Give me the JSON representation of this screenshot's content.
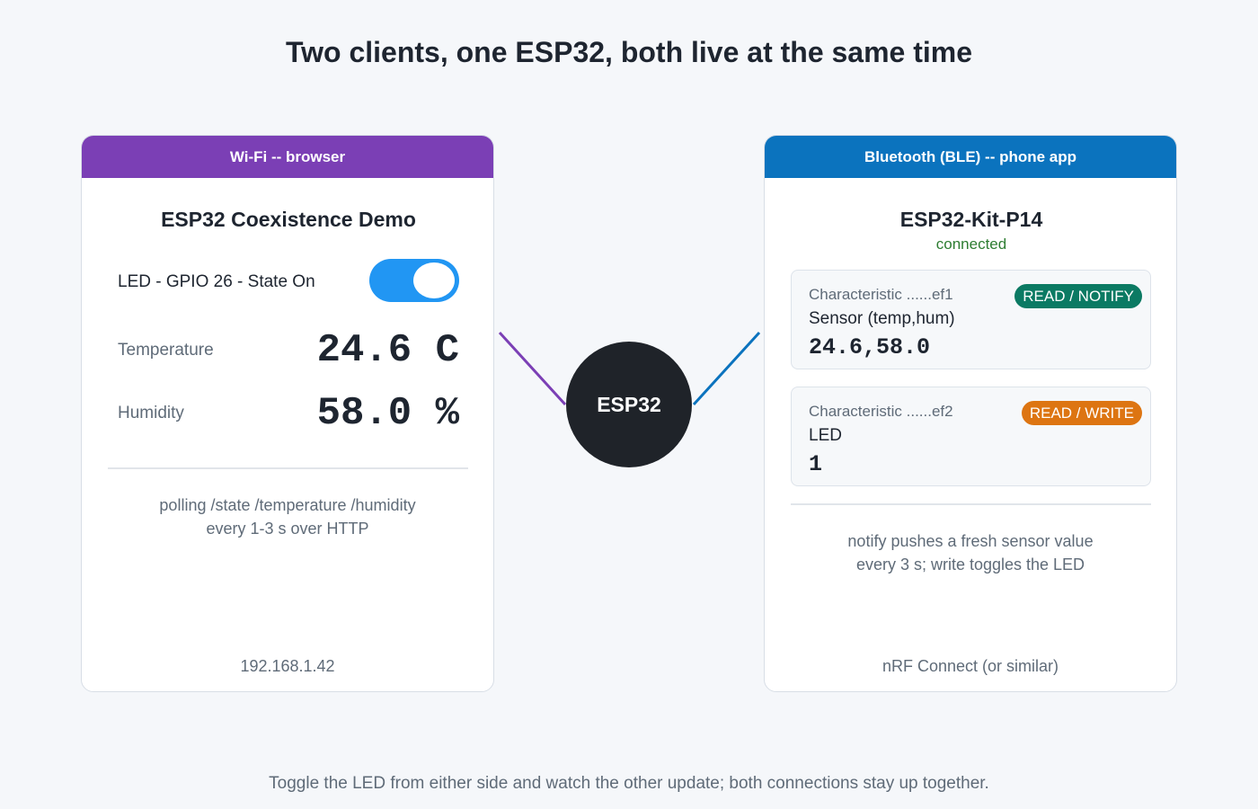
{
  "title": "Two clients, one ESP32, both live at the same time",
  "wifi_panel": {
    "header": "Wi-Fi -- browser",
    "page_title": "ESP32 Coexistence Demo",
    "led_label": "LED - GPIO 26 - State On",
    "led_on": true,
    "temperature_label": "Temperature",
    "temperature_value": "24.6 C",
    "humidity_label": "Humidity",
    "humidity_value": "58.0 %",
    "note_line1": "polling /state /temperature /humidity",
    "note_line2": "every 1-3 s over HTTP",
    "footer": "192.168.1.42"
  },
  "ble_panel": {
    "header": "Bluetooth (BLE) -- phone app",
    "device_name": "ESP32-Kit-P14",
    "status": "connected",
    "characteristics": [
      {
        "id": "Characteristic ......ef1",
        "name": "Sensor  (temp,hum)",
        "value": "24.6,58.0",
        "badge": "READ / NOTIFY"
      },
      {
        "id": "Characteristic ......ef2",
        "name": "LED",
        "value": "1",
        "badge": "READ / WRITE"
      }
    ],
    "note_line1": "notify pushes a fresh sensor value",
    "note_line2": "every 3 s; write toggles the LED",
    "footer": "nRF Connect (or similar)"
  },
  "center_node": "ESP32",
  "caption": "Toggle the LED from either side and watch the other update; both connections stay up together.",
  "colors": {
    "wifi": "#7b3fb5",
    "ble": "#0b73be",
    "toggle_on": "#2196f3",
    "notify_badge": "#0b7a63",
    "write_badge": "#dd7512",
    "node": "#1f2329",
    "connected": "#2e7d32"
  }
}
